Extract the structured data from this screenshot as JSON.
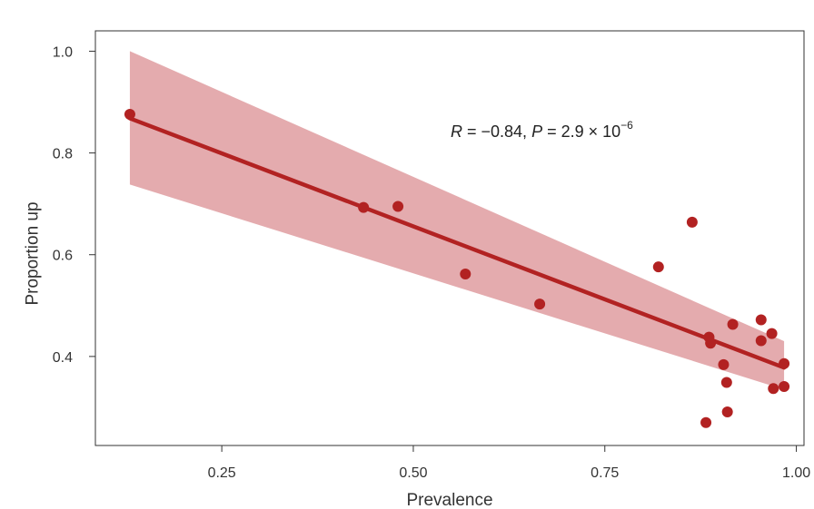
{
  "chart_data": {
    "type": "scatter",
    "xlabel": "Prevalence",
    "ylabel": "Proportion up",
    "xlim": [
      0.085,
      1.01
    ],
    "ylim": [
      0.225,
      1.04
    ],
    "xticks": [
      0.25,
      0.5,
      0.75,
      1.0
    ],
    "xtick_labels": [
      "0.25",
      "0.50",
      "0.75",
      "1.00"
    ],
    "yticks": [
      0.4,
      0.6,
      0.8,
      1.0
    ],
    "ytick_labels": [
      "0.4",
      "0.6",
      "0.8",
      "1.0"
    ],
    "grid": false,
    "annotation": {
      "r_symbol": "R",
      "r_text": " = −0.84, ",
      "p_symbol": "P",
      "p_text": " = 2.9 × 10",
      "p_exponent": "−6"
    },
    "points": [
      {
        "x": 0.13,
        "y": 0.876
      },
      {
        "x": 0.435,
        "y": 0.693
      },
      {
        "x": 0.48,
        "y": 0.695
      },
      {
        "x": 0.568,
        "y": 0.562
      },
      {
        "x": 0.665,
        "y": 0.503
      },
      {
        "x": 0.82,
        "y": 0.576
      },
      {
        "x": 0.864,
        "y": 0.664
      },
      {
        "x": 0.882,
        "y": 0.27
      },
      {
        "x": 0.886,
        "y": 0.438
      },
      {
        "x": 0.888,
        "y": 0.426
      },
      {
        "x": 0.905,
        "y": 0.384
      },
      {
        "x": 0.909,
        "y": 0.349
      },
      {
        "x": 0.91,
        "y": 0.291
      },
      {
        "x": 0.917,
        "y": 0.463
      },
      {
        "x": 0.954,
        "y": 0.472
      },
      {
        "x": 0.954,
        "y": 0.431
      },
      {
        "x": 0.968,
        "y": 0.445
      },
      {
        "x": 0.97,
        "y": 0.337
      },
      {
        "x": 0.984,
        "y": 0.386
      },
      {
        "x": 0.984,
        "y": 0.341
      }
    ],
    "fit_line": {
      "x": [
        0.13,
        0.984
      ],
      "y": [
        0.868,
        0.378
      ]
    },
    "confidence_band": {
      "x": [
        0.13,
        0.984
      ],
      "upper": [
        1.0,
        0.43
      ],
      "lower": [
        0.738,
        0.335
      ]
    },
    "colors": {
      "points": "#b22222",
      "line": "#b22222",
      "band": "#e3a6aa",
      "axis": "#333333"
    }
  }
}
